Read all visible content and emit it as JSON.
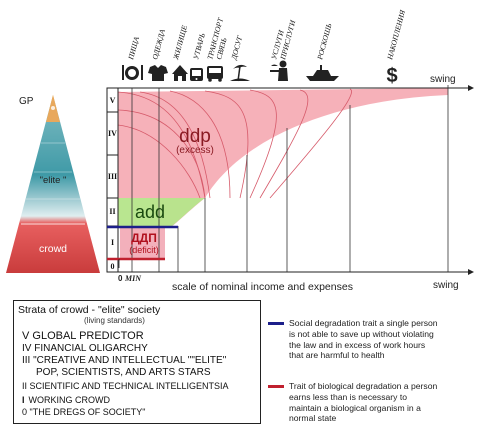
{
  "header": {
    "categories": [
      {
        "label": "ПИЩА",
        "icon": "food-icon"
      },
      {
        "label": "ОДЕЖДА",
        "icon": "clothing-icon"
      },
      {
        "label": "ЖИЛИЩЕ",
        "icon": "house-icon"
      },
      {
        "label": "УТВАРЬ",
        "icon": "utensils-icon"
      },
      {
        "label": "ТРАНСПОРТ СВЯЗЬ",
        "icon": "transport-icon"
      },
      {
        "label": "ДОСУГ",
        "icon": "leisure-icon"
      },
      {
        "label": "УСЛУГИ ПРИСЛУГИ",
        "icon": "servant-icon"
      },
      {
        "label": "РОСКОШЬ",
        "icon": "yacht-icon"
      },
      {
        "label": "НАКОПЛЕНИЯ",
        "icon": "dollar-icon"
      }
    ]
  },
  "pyramid": {
    "gp_label": "GP",
    "elite_label": "\"elite \"",
    "crowd_label": "crowd"
  },
  "chart": {
    "levels": [
      "V",
      "IV",
      "III",
      "II",
      "I",
      "0"
    ],
    "swing_top": "swing",
    "swing_bottom": "swing",
    "ddp": "ddp",
    "ddp_sub": "(excess)",
    "add": "add",
    "dap": "ДДП",
    "dap_sub": "(deficit)",
    "min_label": "0",
    "min_word": "MIN",
    "x_axis_label": "scale of nominal income and expenses"
  },
  "legend": {
    "title": "Strata of crowd - \"elite\" society",
    "subtitle": "(living standards)",
    "items": [
      "V GLOBAL PREDICTOR",
      "IV FINANCIAL OLIGARCHY",
      "III \"CREATIVE AND INTELLECTUAL \"\"ELITE\"",
      "POP, SCIENTISTS, AND ARTS STARS",
      "II SCIENTIFIC AND TECHNICAL INTELLIGENTSIA",
      "WORKING CROWD",
      "0 \"THE DREGS OF SOCIETY\""
    ],
    "working_prefix": "I"
  },
  "notes": {
    "social": "Social degradation trait a single person is not able to save up without violating the law and in excess of work hours that are harmful to health",
    "biological": "Trait of biological degradation a person earns less than is necessary to maintain a biological organism in a normal state"
  },
  "colors": {
    "excess_fill": "#f5a3ad",
    "add_fill": "#b5e58a",
    "deficit_fill": "#f2a7b4",
    "social_line": "#1c1f8a",
    "biological_line": "#c0202e",
    "pyramid_top": "#e8a85c",
    "pyramid_mid": "#4ea1ad",
    "pyramid_bottom": "#d94a4a"
  }
}
